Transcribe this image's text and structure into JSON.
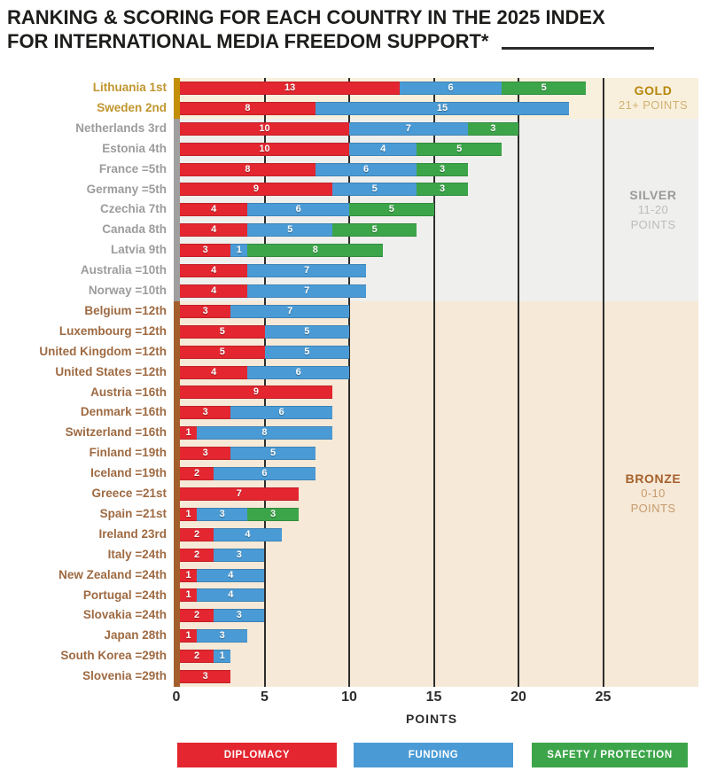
{
  "title": {
    "line1": "RANKING & SCORING FOR EACH COUNTRY IN THE 2025 INDEX",
    "line2": "FOR INTERNATIONAL MEDIA FREEDOM SUPPORT*"
  },
  "zones": [
    {
      "id": "gold",
      "name": "GOLD",
      "range_lines": [
        "21+ POINTS"
      ],
      "rows": 2,
      "bg": "#f8f0dc",
      "strip": "#c28f06",
      "name_color": "#b8860b",
      "range_color": "#d2b171",
      "country_color": "#c0962f"
    },
    {
      "id": "silver",
      "name": "SILVER",
      "range_lines": [
        "11-20",
        "POINTS"
      ],
      "rows": 9,
      "bg": "#efefed",
      "strip": "#9f9f9f",
      "name_color": "#9a9a9a",
      "range_color": "#bcbcbc",
      "country_color": "#9c9c9c"
    },
    {
      "id": "bronze",
      "name": "BRONZE",
      "range_lines": [
        "0-10",
        "POINTS"
      ],
      "rows": 19,
      "bg": "#f6e9d7",
      "strip": "#a35f2b",
      "name_color": "#a5602c",
      "range_color": "#c69b6f",
      "country_color": "#9e6a42"
    }
  ],
  "legend": [
    {
      "id": "diplomacy",
      "label": "DIPLOMACY",
      "color": "#e3262f"
    },
    {
      "id": "funding",
      "label": "FUNDING",
      "color": "#4a9bd5"
    },
    {
      "id": "safety",
      "label": "SAFETY / PROTECTION",
      "color": "#3ca54a"
    }
  ],
  "chart_data": {
    "type": "bar",
    "stacked": true,
    "orientation": "horizontal",
    "xlabel": "POINTS",
    "xlim": [
      0,
      25
    ],
    "ticks": [
      0,
      5,
      10,
      15,
      20,
      25
    ],
    "series": [
      {
        "name": "DIPLOMACY",
        "color": "#e3262f"
      },
      {
        "name": "FUNDING",
        "color": "#4a9bd5"
      },
      {
        "name": "SAFETY / PROTECTION",
        "color": "#3ca54a"
      }
    ],
    "countries": [
      {
        "label": "Lithuania 1st",
        "zone": "gold",
        "values": [
          13,
          6,
          5
        ]
      },
      {
        "label": "Sweden 2nd",
        "zone": "gold",
        "values": [
          8,
          15,
          0
        ]
      },
      {
        "label": "Netherlands 3rd",
        "zone": "silver",
        "values": [
          10,
          7,
          3
        ]
      },
      {
        "label": "Estonia 4th",
        "zone": "silver",
        "values": [
          10,
          4,
          5
        ]
      },
      {
        "label": "France =5th",
        "zone": "silver",
        "values": [
          8,
          6,
          3
        ]
      },
      {
        "label": "Germany =5th",
        "zone": "silver",
        "values": [
          9,
          5,
          3
        ]
      },
      {
        "label": "Czechia 7th",
        "zone": "silver",
        "values": [
          4,
          6,
          5
        ]
      },
      {
        "label": "Canada 8th",
        "zone": "silver",
        "values": [
          4,
          5,
          5
        ]
      },
      {
        "label": "Latvia 9th",
        "zone": "silver",
        "values": [
          3,
          1,
          8
        ]
      },
      {
        "label": "Australia =10th",
        "zone": "silver",
        "values": [
          4,
          7,
          0
        ]
      },
      {
        "label": "Norway =10th",
        "zone": "silver",
        "values": [
          4,
          7,
          0
        ]
      },
      {
        "label": "Belgium =12th",
        "zone": "bronze",
        "values": [
          3,
          7,
          0
        ]
      },
      {
        "label": "Luxembourg =12th",
        "zone": "bronze",
        "values": [
          5,
          5,
          0
        ]
      },
      {
        "label": "United Kingdom =12th",
        "zone": "bronze",
        "values": [
          5,
          5,
          0
        ]
      },
      {
        "label": "United States =12th",
        "zone": "bronze",
        "values": [
          4,
          6,
          0
        ]
      },
      {
        "label": "Austria =16th",
        "zone": "bronze",
        "values": [
          9,
          0,
          0
        ]
      },
      {
        "label": "Denmark =16th",
        "zone": "bronze",
        "values": [
          3,
          6,
          0
        ]
      },
      {
        "label": "Switzerland =16th",
        "zone": "bronze",
        "values": [
          1,
          8,
          0
        ]
      },
      {
        "label": "Finland =19th",
        "zone": "bronze",
        "values": [
          3,
          5,
          0
        ]
      },
      {
        "label": "Iceland =19th",
        "zone": "bronze",
        "values": [
          2,
          6,
          0
        ]
      },
      {
        "label": "Greece =21st",
        "zone": "bronze",
        "values": [
          7,
          0,
          0
        ]
      },
      {
        "label": "Spain =21st",
        "zone": "bronze",
        "values": [
          1,
          3,
          3
        ]
      },
      {
        "label": "Ireland 23rd",
        "zone": "bronze",
        "values": [
          2,
          4,
          0
        ]
      },
      {
        "label": "Italy =24th",
        "zone": "bronze",
        "values": [
          2,
          3,
          0
        ]
      },
      {
        "label": "New Zealand =24th",
        "zone": "bronze",
        "values": [
          1,
          4,
          0
        ]
      },
      {
        "label": "Portugal =24th",
        "zone": "bronze",
        "values": [
          1,
          4,
          0
        ]
      },
      {
        "label": "Slovakia =24th",
        "zone": "bronze",
        "values": [
          2,
          3,
          0
        ]
      },
      {
        "label": "Japan 28th",
        "zone": "bronze",
        "values": [
          1,
          3,
          0
        ]
      },
      {
        "label": "South Korea =29th",
        "zone": "bronze",
        "values": [
          2,
          1,
          0
        ]
      },
      {
        "label": "Slovenia =29th",
        "zone": "bronze",
        "values": [
          3,
          0,
          0
        ]
      }
    ]
  }
}
